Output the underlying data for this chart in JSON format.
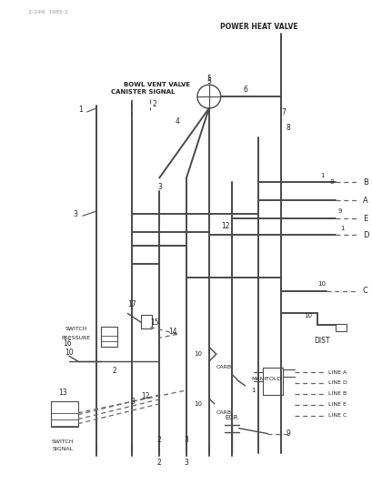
{
  "bg_color": "#ffffff",
  "line_color": "#4a4a4a",
  "text_color": "#222222",
  "dashed_color": "#666666",
  "top_ref": "2-249  1985-1",
  "power_heat_valve_label": "POWER HEAT VALVE",
  "bowl_vent_label": "BOWL VENT VALVE",
  "canister_label": "CANISTER SIGNAL",
  "switch_pressure_label1": "SWITCH",
  "switch_pressure_label2": "PRESSURE",
  "switch_signal_label1": "SWITCH",
  "switch_signal_label2": "SIGNAL",
  "dist_label": "DIST",
  "manifold_label": "MANIFOLD",
  "egr_label": "EGR",
  "carb_label": "CARB",
  "line_labels": [
    "LINE A",
    "LINE D",
    "LINE B",
    "LINE E",
    "LINE C"
  ],
  "right_letters": [
    [
      "B",
      0.595
    ],
    [
      "A",
      0.56
    ],
    [
      "E",
      0.525
    ],
    [
      "D",
      0.49
    ],
    [
      "C",
      0.4
    ]
  ]
}
